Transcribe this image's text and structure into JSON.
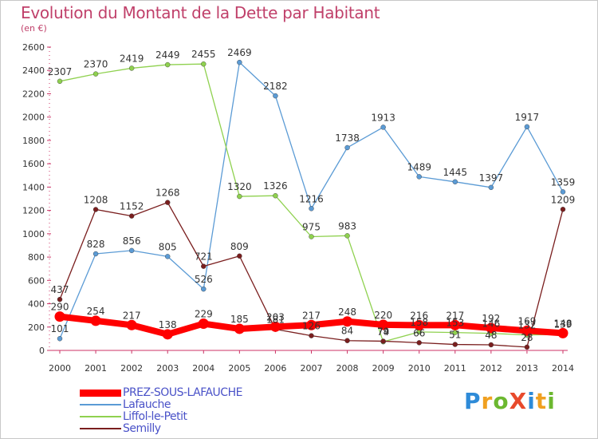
{
  "title": "Evolution du Montant de la Dette par Habitant",
  "subtitle": "(en €)",
  "logo": {
    "text": "ProXiti",
    "colors": [
      "#2e8bd8",
      "#f0a020",
      "#6cb830",
      "#e84a2c",
      "#2e8bd8",
      "#f0a020",
      "#6cb830"
    ]
  },
  "chart_data": {
    "type": "line",
    "x": [
      "2000",
      "2001",
      "2002",
      "2003",
      "2004",
      "2005",
      "2006",
      "2007",
      "2008",
      "2009",
      "2010",
      "2011",
      "2012",
      "2013",
      "2014"
    ],
    "ylim": [
      0,
      2600
    ],
    "yticks": [
      "0",
      "200",
      "400",
      "600",
      "800",
      "1000",
      "1200",
      "1400",
      "1600",
      "1800",
      "2000",
      "2200",
      "2400",
      "2600"
    ],
    "grid": false,
    "legend_position": "bottom-left",
    "series": [
      {
        "name": "PREZ-SOUS-LAFAUCHE",
        "color": "#ff0000",
        "thick": true,
        "values": [
          290,
          254,
          217,
          138,
          229,
          185,
          203,
          217,
          248,
          220,
          216,
          217,
          192,
          169,
          148
        ],
        "labels": [
          "290",
          "254",
          "217",
          "138",
          "229",
          "185",
          "203",
          "217",
          "248",
          "220",
          "216",
          "217",
          "192",
          "169",
          "148"
        ]
      },
      {
        "name": "Lafauche",
        "color": "#5b9bd5",
        "thick": false,
        "values": [
          101,
          828,
          856,
          805,
          526,
          2469,
          2182,
          1216,
          1738,
          1913,
          1489,
          1445,
          1397,
          1917,
          1359
        ],
        "labels": [
          "101",
          "828",
          "856",
          "805",
          "526",
          "2469",
          "2182",
          "1216",
          "1738",
          "1913",
          "1489",
          "1445",
          "1397",
          "1917",
          "1359"
        ]
      },
      {
        "name": "Liffol-le-Petit",
        "color": "#8fd14f",
        "thick": false,
        "values": [
          2307,
          2370,
          2419,
          2449,
          2455,
          1320,
          1326,
          975,
          983,
          74,
          158,
          153,
          146,
          132,
          139
        ],
        "labels": [
          "2307",
          "2370",
          "2419",
          "2449",
          "2455",
          "1320",
          "1326",
          "975",
          "983",
          "74",
          "158",
          "153",
          "146",
          "132",
          "139"
        ]
      },
      {
        "name": "Semilly",
        "color": "#7a1e1e",
        "thick": false,
        "values": [
          437,
          1208,
          1152,
          1268,
          721,
          809,
          181,
          126,
          84,
          79,
          66,
          51,
          48,
          28,
          1209
        ],
        "labels": [
          "437",
          "1208",
          "1152",
          "1268",
          "721",
          "809",
          "181",
          "126",
          "84",
          "79",
          "66",
          "51",
          "48",
          "28",
          "1209"
        ]
      }
    ]
  }
}
